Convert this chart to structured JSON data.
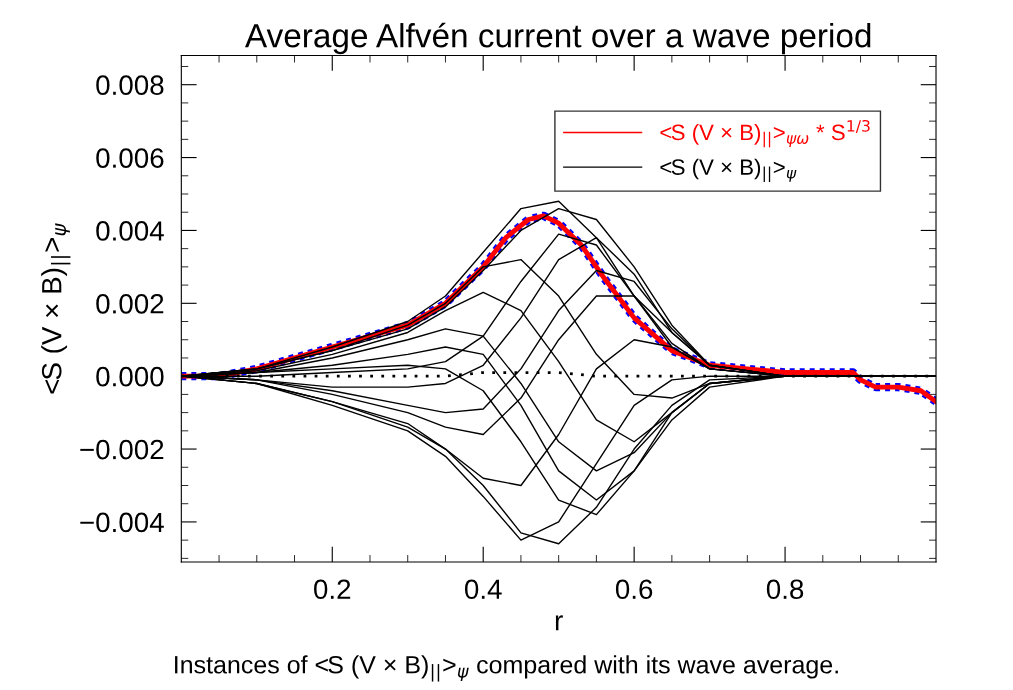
{
  "chart_data": {
    "type": "line",
    "title": "Average Alfvén current over a wave period",
    "xlabel": "r",
    "ylabel": "<S (V × B)$_{||}$>$_{ψ}$",
    "annotations": [
      "Instances of <S (V × B)$_{||}$>$_{ψ}$ compared with its wave average."
    ],
    "x": [
      0,
      0.1,
      0.2,
      0.3,
      0.35,
      0.4,
      0.45,
      0.5,
      0.55,
      0.6,
      0.65,
      0.7,
      0.8,
      0.9,
      1.0
    ],
    "xlim": [
      0,
      1
    ],
    "xticks": [
      {
        "value": 0.05,
        "label": null
      },
      {
        "value": 0.1,
        "label": null
      },
      {
        "value": 0.15,
        "label": null
      },
      0.2,
      {
        "value": 0.25,
        "label": null
      },
      {
        "value": 0.3,
        "label": null
      },
      {
        "value": 0.35,
        "label": null
      },
      0.4,
      {
        "value": 0.45,
        "label": null
      },
      {
        "value": 0.5,
        "label": null
      },
      {
        "value": 0.55,
        "label": null
      },
      0.6,
      {
        "value": 0.65,
        "label": null
      },
      {
        "value": 0.7,
        "label": null
      },
      {
        "value": 0.75,
        "label": null
      },
      0.8,
      {
        "value": 0.85,
        "label": null
      },
      {
        "value": 0.9,
        "label": null
      },
      {
        "value": 0.95,
        "label": null
      }
    ],
    "ylim": [
      -0.0051,
      0.0088
    ],
    "yticks": [
      {
        "value": -0.005,
        "label": null
      },
      {
        "value": -0.0045,
        "label": null
      },
      {
        "value": -0.004,
        "label": "−0.004"
      },
      {
        "value": -0.0035,
        "label": null
      },
      {
        "value": -0.003,
        "label": null
      },
      {
        "value": -0.0025,
        "label": null
      },
      {
        "value": -0.002,
        "label": "−0.002"
      },
      {
        "value": -0.0015,
        "label": null
      },
      {
        "value": -0.001,
        "label": null
      },
      {
        "value": -0.0005,
        "label": null
      },
      {
        "value": 0,
        "label": "0.000"
      },
      {
        "value": 0.0005,
        "label": null
      },
      {
        "value": 0.001,
        "label": null
      },
      {
        "value": 0.0015,
        "label": null
      },
      {
        "value": 0.002,
        "label": "0.002"
      },
      {
        "value": 0.0025,
        "label": null
      },
      {
        "value": 0.003,
        "label": null
      },
      {
        "value": 0.0035,
        "label": null
      },
      {
        "value": 0.004,
        "label": "0.004"
      },
      {
        "value": 0.0045,
        "label": null
      },
      {
        "value": 0.005,
        "label": null
      },
      {
        "value": 0.0055,
        "label": null
      },
      {
        "value": 0.006,
        "label": "0.006"
      },
      {
        "value": 0.0065,
        "label": null
      },
      {
        "value": 0.007,
        "label": null
      },
      {
        "value": 0.0075,
        "label": null
      },
      {
        "value": 0.008,
        "label": "0.008"
      },
      {
        "value": 0.0085,
        "label": null
      }
    ],
    "grid": false,
    "legend": "top right",
    "series": [
      {
        "color": "#0000ff",
        "line_style": "dotted",
        "x": [
          0,
          0.05,
          0.1,
          0.2,
          0.3,
          0.35,
          0.4,
          0.43,
          0.46,
          0.48,
          0.5,
          0.53,
          0.56,
          0.6,
          0.65,
          0.7,
          0.75,
          0.8,
          0.87,
          0.89,
          0.9,
          0.92,
          0.95,
          0.98,
          1.0
        ],
        "values": [
          0,
          0,
          0.0002,
          0.0008,
          0.0014,
          0.002,
          0.003,
          0.0038,
          0.0043,
          0.0044,
          0.0042,
          0.0036,
          0.0027,
          0.0016,
          0.0007,
          0.0003,
          0.0002,
          0.0001,
          0.0001,
          0.0001,
          -0.0001,
          -0.0003,
          -0.0003,
          -0.0004,
          -0.0007
        ]
      },
      {
        "color": "#ff0000",
        "name": "<S (V × B)$_{||}$>$_{ψω}$ * S$^{1/3}$",
        "x": [
          0,
          0.05,
          0.1,
          0.2,
          0.3,
          0.35,
          0.4,
          0.43,
          0.46,
          0.48,
          0.5,
          0.53,
          0.56,
          0.6,
          0.65,
          0.7,
          0.75,
          0.8,
          0.87,
          0.89,
          0.9,
          0.92,
          0.95,
          0.98,
          1.0
        ],
        "values": [
          0,
          0,
          0.0002,
          0.0008,
          0.0014,
          0.002,
          0.003,
          0.0038,
          0.0043,
          0.0044,
          0.0042,
          0.0036,
          0.0027,
          0.0016,
          0.0007,
          0.0003,
          0.0002,
          0.0001,
          0.0001,
          0.0001,
          -0.0001,
          -0.0003,
          -0.0003,
          -0.0004,
          -0.0007
        ]
      },
      {
        "color": "#000000",
        "name": "<S (V × B)$_{||}$>$_{ψ}$",
        "values": [
          0,
          0.0002,
          0.0008,
          0.0015,
          0.0022,
          0.0034,
          0.0046,
          0.0048,
          0.0038,
          0.0022,
          0.0009,
          0.0002,
          0,
          0,
          0
        ]
      },
      {
        "color": "#000000",
        "values": [
          0,
          0.0002,
          0.0007,
          0.0013,
          0.0019,
          0.0029,
          0.004,
          0.0046,
          0.0043,
          0.003,
          0.0014,
          0.0003,
          0,
          0,
          0
        ]
      },
      {
        "color": "#000000",
        "values": [
          0,
          0.0002,
          0.0007,
          0.0014,
          0.002,
          0.003,
          0.0032,
          0.0022,
          0.0006,
          -0.0005,
          -0.0006,
          -0.0002,
          0,
          0,
          0
        ]
      },
      {
        "color": "#000000",
        "values": [
          0,
          0.00015,
          0.0006,
          0.0012,
          0.0018,
          0.0023,
          0.0018,
          0.0004,
          -0.0012,
          -0.0018,
          -0.001,
          -0.0002,
          0,
          0,
          0
        ]
      },
      {
        "color": "#000000",
        "values": [
          0,
          0.0001,
          0.0005,
          0.001,
          0.0013,
          0.0011,
          -0.0002,
          -0.0018,
          -0.0026,
          -0.0021,
          -0.001,
          -0.0002,
          0,
          0,
          0
        ]
      },
      {
        "color": "#000000",
        "values": [
          0,
          0.0001,
          0.0002,
          0.0003,
          0.0002,
          -0.0004,
          -0.0018,
          -0.0034,
          -0.0038,
          -0.0026,
          -0.001,
          -0.0002,
          0,
          0,
          0
        ]
      },
      {
        "color": "#000000",
        "values": [
          0,
          -0.0002,
          -0.0007,
          -0.0013,
          -0.002,
          -0.003,
          -0.0043,
          -0.0046,
          -0.0036,
          -0.002,
          -0.0008,
          -0.0001,
          0,
          0,
          0
        ]
      },
      {
        "color": "#000000",
        "values": [
          0,
          -0.0002,
          -0.0008,
          -0.0015,
          -0.0022,
          -0.0033,
          -0.0045,
          -0.004,
          -0.0024,
          -0.0008,
          -0.0001,
          0,
          0,
          0,
          0
        ]
      },
      {
        "color": "#000000",
        "values": [
          0,
          -0.0002,
          -0.0007,
          -0.0014,
          -0.002,
          -0.0028,
          -0.003,
          -0.0016,
          0.0002,
          0.001,
          0.0008,
          0.0002,
          0,
          0,
          0
        ]
      },
      {
        "color": "#000000",
        "values": [
          0,
          -0.0001,
          -0.0005,
          -0.001,
          -0.0014,
          -0.0016,
          -0.0006,
          0.001,
          0.0022,
          0.0022,
          0.0012,
          0.0003,
          0,
          0,
          0
        ]
      },
      {
        "color": "#000000",
        "values": [
          0,
          -0.0001,
          -0.0003,
          -0.0003,
          -0.0002,
          0.0003,
          0.0016,
          0.0032,
          0.0038,
          0.0028,
          0.0012,
          0.0003,
          0,
          0,
          0
        ]
      },
      {
        "color": "#000000",
        "values": [
          0,
          0.0001,
          0.0003,
          0.0006,
          0.0008,
          0.0006,
          -0.0008,
          -0.0026,
          -0.0034,
          -0.0026,
          -0.0012,
          -0.0003,
          0,
          0,
          0
        ]
      },
      {
        "color": "#000000",
        "values": [
          0,
          0,
          0.0001,
          0.0002,
          0.0004,
          0.0011,
          0.0026,
          0.0039,
          0.0036,
          0.0022,
          0.0008,
          0.0002,
          0,
          0,
          0
        ]
      },
      {
        "color": "#000000",
        "values": [
          0,
          -0.0001,
          -0.0004,
          -0.0008,
          -0.001,
          -0.0009,
          0.0002,
          0.0018,
          0.0029,
          0.0026,
          0.0013,
          0.0003,
          0,
          0,
          0
        ]
      },
      {
        "color": "#000000",
        "line_style": "dotted",
        "values": [
          0,
          0,
          0,
          0,
          0,
          0.0001,
          0.0001,
          0.0001,
          0,
          0,
          0,
          0,
          0,
          0,
          0
        ]
      }
    ]
  }
}
